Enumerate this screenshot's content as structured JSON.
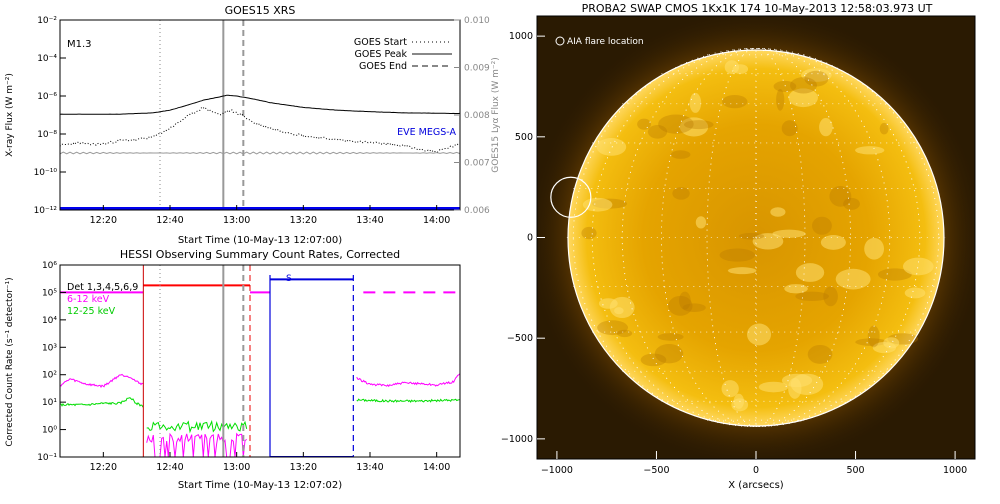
{
  "chart_data": [
    {
      "type": "line",
      "title": "GOES15 XRS",
      "xlabel": "Start Time (10-May-13 12:07:00)",
      "ylabel": "X-ray Flux (W m⁻²)",
      "y2label": "GOES15 Lyα Flux (W m⁻²)",
      "flare_class": "M1.3",
      "x_ticks": [
        "12:20",
        "12:40",
        "13:00",
        "13:20",
        "13:40",
        "14:00"
      ],
      "x_range_minutes": [
        727,
        847
      ],
      "y_log": true,
      "y_range": [
        1e-12,
        0.01
      ],
      "y_ticks": [
        "10⁻¹²",
        "10⁻¹⁰",
        "10⁻⁸",
        "10⁻⁶",
        "10⁻⁴",
        "10⁻²"
      ],
      "y2_range": [
        0.006,
        0.01
      ],
      "y2_ticks": [
        "0.006",
        "0.007",
        "0.008",
        "0.009",
        "0.010"
      ],
      "legend": [
        {
          "name": "GOES Start",
          "style": "dotted"
        },
        {
          "name": "GOES Peak",
          "style": "solid"
        },
        {
          "name": "GOES End",
          "style": "dashed"
        }
      ],
      "eve_label": "EVE MEGS-A",
      "markers_minutes": {
        "start": 757,
        "peak": 776,
        "end": 782
      },
      "series": [
        {
          "name": "long",
          "style": "solid",
          "x": [
            727,
            745,
            755,
            760,
            765,
            770,
            775,
            777,
            780,
            785,
            790,
            800,
            810,
            820,
            830,
            847
          ],
          "y": [
            1.1e-07,
            1.1e-07,
            1.3e-07,
            1.8e-07,
            3.2e-07,
            6e-07,
            9e-07,
            1.1e-06,
            1e-06,
            7e-07,
            4.5e-07,
            2.5e-07,
            1.8e-07,
            1.5e-07,
            1.3e-07,
            1.2e-07
          ]
        },
        {
          "name": "short",
          "style": "dotted",
          "x": [
            727,
            733,
            735,
            740,
            745,
            750,
            755,
            760,
            765,
            770,
            775,
            778,
            782,
            785,
            790,
            800,
            810,
            820,
            830,
            835,
            840,
            847
          ],
          "y": [
            2.5e-09,
            3.5e-09,
            2.8e-09,
            3e-09,
            4.5e-09,
            5e-09,
            7e-09,
            2e-08,
            8e-08,
            2.5e-07,
            1e-07,
            1.8e-07,
            9e-08,
            4e-08,
            2e-08,
            8e-09,
            5e-09,
            3.5e-09,
            2.5e-09,
            1.5e-09,
            1.2e-09,
            3e-09
          ]
        },
        {
          "name": "lya",
          "style": "solid-gray",
          "x": [
            727,
            847
          ],
          "y": [
            0.0072,
            0.0072
          ]
        },
        {
          "name": "EVE MEGS-A",
          "style": "solid-blue",
          "x": [
            727,
            847
          ],
          "y": [
            1.2e-12,
            1.2e-12
          ]
        }
      ]
    },
    {
      "type": "line",
      "title": "HESSI Observing Summary Count Rates, Corrected",
      "xlabel": "Start Time (10-May-13 12:07:02)",
      "ylabel": "Corrected Count Rate (s⁻¹ detector⁻¹)",
      "x_ticks": [
        "12:20",
        "12:40",
        "13:00",
        "13:20",
        "13:40",
        "14:00"
      ],
      "x_range_minutes": [
        727,
        847
      ],
      "y_log": true,
      "y_range": [
        0.1,
        1000000.0
      ],
      "y_ticks": [
        "10⁻¹",
        "10⁰",
        "10¹",
        "10²",
        "10³",
        "10⁴",
        "10⁵",
        "10⁶"
      ],
      "legend": [
        {
          "name": "Det 1,3,4,5,6,9",
          "color": "#000000"
        },
        {
          "name": "6-12 keV",
          "color": "#ff00ff"
        },
        {
          "name": "12-25 keV",
          "color": "#00dd00"
        }
      ],
      "s_flag": "S",
      "markers_minutes": {
        "start": 757,
        "peak": 776,
        "end": 782,
        "red_solid": 752,
        "red_dashed": 784,
        "blue_solid": 790,
        "blue_dashed": 815
      },
      "series": [
        {
          "name": "6-12 keV",
          "x": [
            727,
            730,
            735,
            740,
            742,
            745,
            748,
            750,
            752
          ],
          "y": [
            40,
            70,
            45,
            38,
            55,
            100,
            85,
            55,
            45
          ]
        },
        {
          "name": "6-12 keV late",
          "x": [
            816,
            820,
            825,
            830,
            835,
            840,
            845,
            847
          ],
          "y": [
            75,
            45,
            40,
            50,
            48,
            42,
            55,
            120
          ]
        },
        {
          "name": "12-25 keV",
          "x": [
            727,
            735,
            740,
            745,
            748,
            750,
            752
          ],
          "y": [
            8,
            8,
            9,
            9,
            15,
            9,
            7
          ]
        },
        {
          "name": "12-25 keV late",
          "x": [
            816,
            825,
            835,
            847
          ],
          "y": [
            12,
            11,
            11,
            12
          ]
        },
        {
          "name": "attenuator",
          "x": [
            727,
            752,
            752,
            784,
            784,
            790,
            790,
            815,
            815,
            847
          ],
          "y": [
            100000.0,
            100000.0,
            180000.0,
            180000.0,
            100000.0,
            100000.0,
            300000.0,
            300000.0,
            100000.0,
            100000.0
          ]
        }
      ]
    },
    {
      "type": "heatmap",
      "title": "PROBA2 SWAP CMOS 1Kx1K 174 10-May-2013 12:58:03.973 UT",
      "xlabel": "X (arcsecs)",
      "ylabel": "",
      "x_range": [
        -1100,
        1100
      ],
      "y_range": [
        -1100,
        1100
      ],
      "x_ticks": [
        "−1000",
        "−500",
        "0",
        "500",
        "1000"
      ],
      "y_ticks": [
        "−1000",
        "−500",
        "0",
        "500",
        "1000"
      ],
      "legend_text": "AIA flare location",
      "solar_radius_arcsec": 950,
      "flare_location_arcsec": [
        -930,
        200
      ],
      "colors": {
        "disk": "#e0a000",
        "corona": "#402000",
        "limb": "#ffffff"
      }
    }
  ]
}
